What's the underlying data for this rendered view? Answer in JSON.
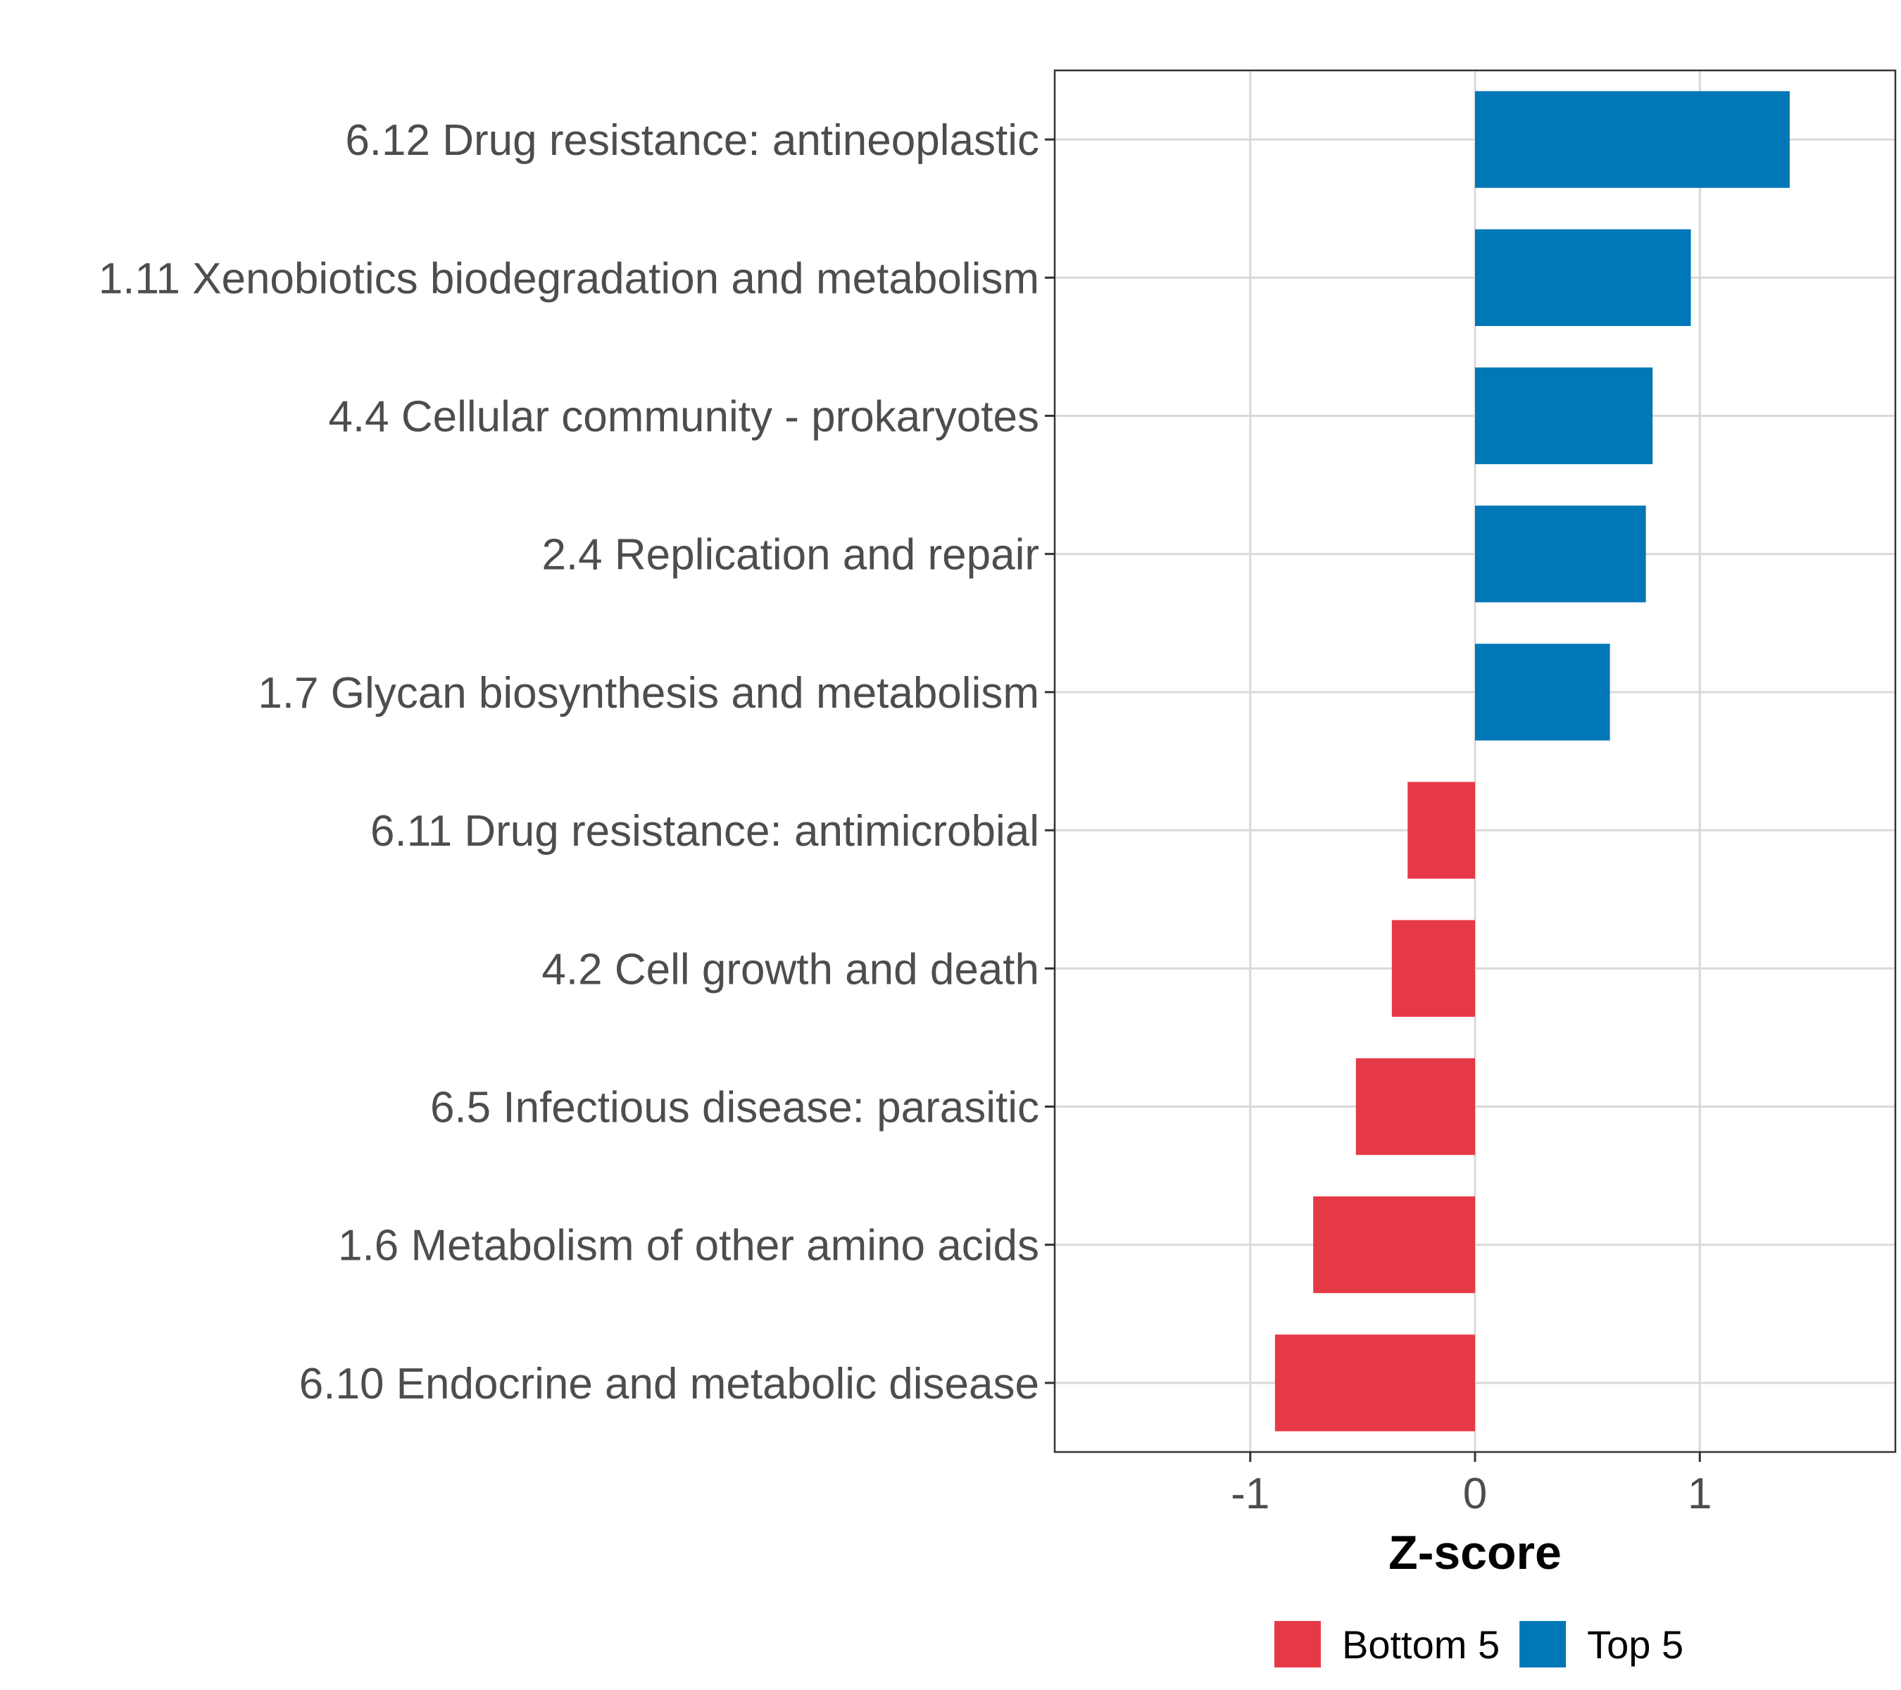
{
  "chart_data": {
    "type": "bar",
    "orientation": "horizontal",
    "categories": [
      "6.12 Drug resistance: antineoplastic",
      "1.11 Xenobiotics biodegradation and metabolism",
      "4.4 Cellular community - prokaryotes",
      "2.4 Replication and repair",
      "1.7 Glycan biosynthesis and metabolism",
      "6.11 Drug resistance: antimicrobial",
      "4.2 Cell growth and death",
      "6.5 Infectious disease: parasitic",
      "1.6 Metabolism of other amino acids",
      "6.10 Endocrine and metabolic disease"
    ],
    "values": [
      1.4,
      0.96,
      0.79,
      0.76,
      0.6,
      -0.3,
      -0.37,
      -0.53,
      -0.72,
      -0.89
    ],
    "groups": [
      "Top 5",
      "Top 5",
      "Top 5",
      "Top 5",
      "Top 5",
      "Bottom 5",
      "Bottom 5",
      "Bottom 5",
      "Bottom 5",
      "Bottom 5"
    ],
    "xlabel": "Z-score",
    "xlim": [
      -1.87,
      1.87
    ],
    "xticks": [
      -1,
      0,
      1
    ],
    "xtick_labels": [
      "-1",
      "0",
      "1"
    ],
    "grid": true,
    "legend": {
      "position": "bottom",
      "entries": [
        {
          "label": "Bottom 5",
          "color": "#e63946"
        },
        {
          "label": "Top 5",
          "color": "#0077b6"
        }
      ]
    },
    "colors": {
      "Top 5": "#0077b6",
      "Bottom 5": "#e63946"
    }
  }
}
